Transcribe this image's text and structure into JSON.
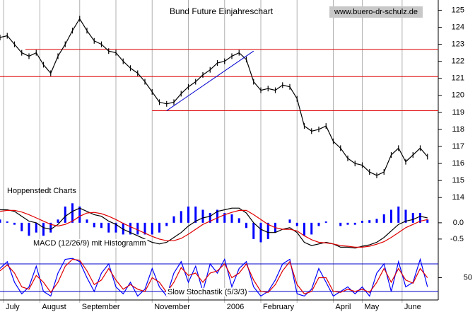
{
  "chart_data": {
    "type": "stock",
    "title": "Bund Future Einjahreschart",
    "watermark": "www.buero-dr-schulz.de",
    "source": "Hoppenstedt Charts",
    "xlim": [
      0,
      120
    ],
    "x": [
      0,
      2,
      4,
      6,
      8,
      10,
      12,
      14,
      16,
      18,
      20,
      22,
      24,
      26,
      28,
      30,
      32,
      34,
      36,
      38,
      40,
      42,
      44,
      46,
      48,
      50,
      52,
      54,
      56,
      58,
      60,
      62,
      64,
      66,
      68,
      70,
      72,
      74,
      76,
      78,
      80,
      82,
      84,
      86,
      88,
      90,
      92,
      94,
      96,
      98,
      100,
      102,
      104,
      106,
      108,
      110,
      112,
      114,
      116,
      118
    ],
    "xticks": [
      {
        "value": 1,
        "label": "July"
      },
      {
        "value": 11,
        "label": "August"
      },
      {
        "value": 22,
        "label": "September"
      },
      {
        "value": 32,
        "label": null
      },
      {
        "value": 42,
        "label": "November"
      },
      {
        "value": 52,
        "label": null
      },
      {
        "value": 62,
        "label": "2006"
      },
      {
        "value": 72,
        "label": "February"
      },
      {
        "value": 82,
        "label": null
      },
      {
        "value": 92,
        "label": "April"
      },
      {
        "value": 100,
        "label": "May"
      },
      {
        "value": 111,
        "label": "June"
      }
    ],
    "price": {
      "ylim": [
        113.8,
        125.6
      ],
      "yticks": [
        114,
        115,
        116,
        117,
        118,
        119,
        120,
        121,
        122,
        123,
        124,
        125
      ],
      "color": "#000000",
      "values": [
        123.4,
        123.5,
        123.0,
        122.5,
        122.3,
        122.5,
        121.8,
        121.3,
        122.3,
        123.0,
        123.8,
        124.5,
        123.8,
        123.2,
        123.0,
        122.6,
        122.5,
        122.0,
        121.6,
        121.3,
        120.8,
        120.2,
        119.6,
        119.5,
        119.6,
        120.1,
        120.5,
        120.8,
        121.2,
        121.5,
        121.9,
        122.0,
        122.3,
        122.5,
        122.1,
        120.8,
        120.3,
        120.4,
        120.3,
        120.6,
        120.5,
        119.8,
        118.2,
        117.9,
        118.0,
        118.2,
        117.3,
        116.9,
        116.3,
        116.0,
        115.9,
        115.5,
        115.3,
        115.5,
        116.5,
        116.9,
        116.1,
        116.5,
        116.9,
        116.4
      ],
      "hlines": [
        {
          "y": 122.7,
          "x0": 7,
          "color": "#e00000"
        },
        {
          "y": 121.1,
          "x0": 0,
          "color": "#e00000"
        },
        {
          "y": 119.1,
          "x0": 42,
          "color": "#e00000"
        }
      ],
      "trendline": {
        "x": [
          46,
          70
        ],
        "y": [
          119.1,
          122.6
        ],
        "color": "#0000cc"
      }
    },
    "macd": {
      "label": "MACD (12/26/9) mit Histogramm",
      "ylim": [
        -1.09,
        0.65
      ],
      "yticks": [
        {
          "value": 0,
          "label": "0.0"
        },
        -0.5
      ],
      "series": [
        {
          "type": "bar",
          "color": "#0000ff",
          "values": [
            0.1,
            0.04,
            -0.06,
            -0.26,
            -0.4,
            -0.3,
            -0.4,
            -0.3,
            0.1,
            0.5,
            0.6,
            0.5,
            0.1,
            -0.14,
            -0.16,
            -0.3,
            -0.3,
            -0.36,
            -0.36,
            -0.36,
            -0.36,
            -0.36,
            -0.3,
            -0.1,
            0.2,
            0.36,
            0.5,
            0.5,
            0.4,
            0.3,
            0.4,
            0.3,
            0.26,
            0.14,
            -0.16,
            -0.5,
            -0.6,
            -0.5,
            -0.3,
            0.0,
            0.1,
            -0.1,
            -0.4,
            -0.36,
            -0.1,
            0.04,
            0.0,
            -0.1,
            -0.06,
            -0.06,
            0.06,
            0.08,
            0.12,
            0.26,
            0.4,
            0.5,
            0.4,
            0.3,
            0.3,
            0.1
          ]
        },
        {
          "type": "line",
          "color": "#000000",
          "values": [
            0.4,
            0.4,
            0.35,
            0.2,
            0.05,
            0.0,
            -0.15,
            -0.2,
            -0.05,
            0.2,
            0.35,
            0.45,
            0.35,
            0.25,
            0.2,
            0.05,
            -0.05,
            -0.2,
            -0.3,
            -0.4,
            -0.5,
            -0.6,
            -0.65,
            -0.6,
            -0.45,
            -0.3,
            -0.1,
            0.05,
            0.15,
            0.2,
            0.35,
            0.4,
            0.45,
            0.45,
            0.3,
            0.0,
            -0.2,
            -0.3,
            -0.3,
            -0.2,
            -0.15,
            -0.3,
            -0.6,
            -0.7,
            -0.65,
            -0.6,
            -0.65,
            -0.75,
            -0.75,
            -0.78,
            -0.72,
            -0.68,
            -0.6,
            -0.45,
            -0.25,
            -0.05,
            0.05,
            0.1,
            0.2,
            0.15
          ]
        },
        {
          "type": "line",
          "color": "#e00000",
          "values": [
            0.35,
            0.38,
            0.38,
            0.33,
            0.25,
            0.15,
            0.05,
            -0.05,
            -0.1,
            -0.05,
            0.05,
            0.2,
            0.3,
            0.32,
            0.28,
            0.2,
            0.1,
            -0.02,
            -0.12,
            -0.22,
            -0.32,
            -0.42,
            -0.5,
            -0.55,
            -0.55,
            -0.48,
            -0.35,
            -0.2,
            -0.05,
            0.05,
            0.15,
            0.25,
            0.32,
            0.38,
            0.38,
            0.25,
            0.1,
            -0.05,
            -0.15,
            -0.2,
            -0.2,
            -0.25,
            -0.4,
            -0.52,
            -0.6,
            -0.62,
            -0.65,
            -0.7,
            -0.72,
            -0.75,
            -0.75,
            -0.72,
            -0.66,
            -0.58,
            -0.45,
            -0.3,
            -0.15,
            -0.05,
            0.05,
            0.1
          ]
        }
      ]
    },
    "stochastic": {
      "label": "Slow Stochastik (5/3/3)",
      "ylim": [
        0,
        100
      ],
      "yticks": [
        50
      ],
      "hlines": [
        {
          "y": 80,
          "x0": 0,
          "color": "#0000cc"
        },
        {
          "y": 20,
          "x0": 0,
          "color": "#0000cc"
        }
      ],
      "series": [
        {
          "type": "line",
          "color": "#0000ff",
          "values": [
            70,
            85,
            40,
            15,
            30,
            75,
            20,
            10,
            60,
            90,
            92,
            85,
            50,
            20,
            60,
            80,
            30,
            15,
            40,
            10,
            25,
            70,
            30,
            10,
            60,
            85,
            40,
            75,
            20,
            80,
            60,
            90,
            30,
            70,
            85,
            30,
            10,
            20,
            45,
            80,
            90,
            15,
            10,
            25,
            70,
            40,
            10,
            20,
            30,
            15,
            30,
            10,
            60,
            80,
            20,
            85,
            30,
            40,
            90,
            30
          ]
        },
        {
          "type": "line",
          "color": "#e00000",
          "values": [
            65,
            78,
            60,
            30,
            25,
            55,
            40,
            18,
            40,
            75,
            90,
            88,
            65,
            35,
            45,
            70,
            45,
            25,
            35,
            25,
            20,
            50,
            40,
            18,
            40,
            72,
            55,
            60,
            40,
            60,
            65,
            80,
            50,
            60,
            80,
            45,
            20,
            18,
            35,
            65,
            85,
            35,
            15,
            20,
            50,
            50,
            20,
            18,
            25,
            20,
            25,
            18,
            40,
            70,
            40,
            70,
            45,
            38,
            70,
            50
          ]
        }
      ]
    }
  }
}
